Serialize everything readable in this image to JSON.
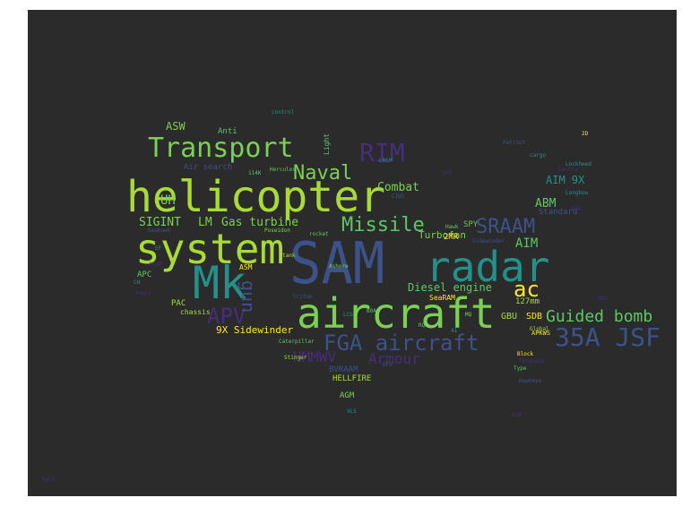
{
  "palette": {
    "background": "#2b2b2b",
    "yellow_green": "#a8db34",
    "green": "#5dc863",
    "teal": "#21918c",
    "blue": "#3b528b",
    "purple": "#472d7b",
    "bright_green": "#7ad151"
  },
  "words": {
    "sam": "SAM",
    "helicopter": "helicopter",
    "system": "system",
    "aircraft": "aircraft",
    "radar": "radar",
    "mk": "Mk",
    "transport": "Transport",
    "fga_aircraft": "FGA aircraft",
    "jsf_35a": "35A JSF",
    "naval": "Naval",
    "missile": "Missile",
    "rim": "RIM",
    "apv": "APV",
    "sraam": "SRAAM",
    "guided_bomb": "Guided bomb",
    "ac": "ac",
    "gun": "gun",
    "hmmwv": "HMMWV",
    "armour": "Armour",
    "sigint": "SIGINT",
    "lm": "LM",
    "gas_turbine": "Gas turbine",
    "combat": "Combat",
    "abm": "ABM",
    "aim": "AIM",
    "aim_9x": "AIM 9X",
    "uh": "UH",
    "asw": "ASW",
    "anti": "Anti",
    "air_search": "Air search",
    "diesel_engine": "Diesel engine",
    "turbofan": "Turbofan",
    "sidewinder_9x": "9X Sidewinder",
    "standard": "Standard",
    "mm127": "127mm",
    "gbu": "GBU",
    "sdb": "SDB",
    "pac": "PAC",
    "apc": "APC",
    "bvraam": "BVRAAM",
    "hellfire": "HELLFIRE",
    "agm": "AGM",
    "spy": "SPY",
    "smr": "2MR",
    "jdam": "JDAM",
    "searam": "SeaRAM",
    "light": "Light",
    "asm": "ASM",
    "chassis": "chassis",
    "hercules": "Hercules",
    "patriot": "Patriot",
    "cargo": "cargo",
    "hawkeye": "Hawkeye",
    "tomahawk": "Tomahawk",
    "stinger": "Stinger",
    "caterpillar": "Caterpillar",
    "poseidon": "Poseidon",
    "seahawk": "Seahawk",
    "lockheed": "Lockheed",
    "control": "control",
    "sidewinder": "Sidewinder",
    "apkws": "APKWS",
    "type": "Type",
    "ashore": "Ashore",
    "triton": "Triton",
    "lrsm": "LRSM",
    "longbow": "Longbow",
    "block": "Block",
    "global": "Global",
    "sentry": "Sentry",
    "hawk": "Hawk",
    "tank": "tank",
    "gun_model": "gun",
    "rocket": "rocket",
    "ball": "Ball",
    "usv": "USV",
    "efv": "EFV",
    "aew": "AEW",
    "ch": "CH",
    "mq": "MQ",
    "rq": "RQ",
    "ef": "EF",
    "e2d": "2D",
    "a60": "60A",
    "k114": "114K",
    "mk41": "41",
    "ciws": "CIWS",
    "aegis": "Aegis",
    "mrap": "MRAP",
    "lcs": "LCS",
    "ddg": "DDG",
    "a10": "A10",
    "vls": "VLS"
  }
}
